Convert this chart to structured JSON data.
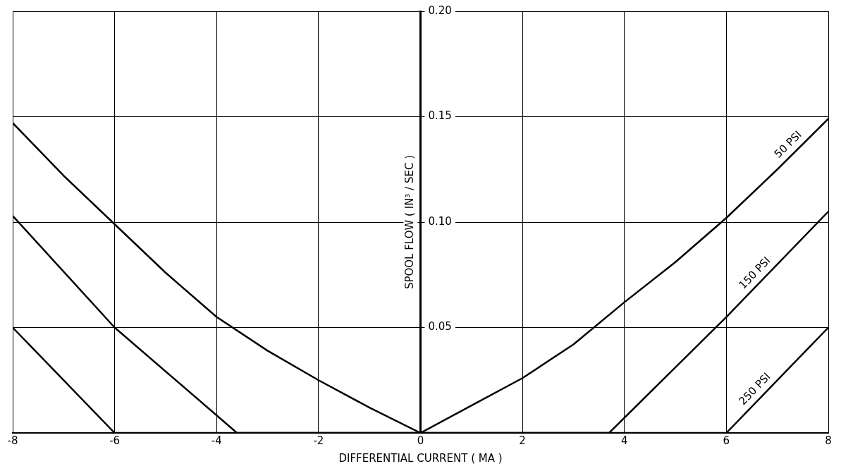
{
  "chart_data": {
    "type": "line",
    "xlabel": "DIFFERENTIAL CURRENT ( MA )",
    "ylabel": "SPOOL FLOW ( IN³ / SEC )",
    "xlim": [
      -8,
      8
    ],
    "xticks": [
      -8,
      -6,
      -4,
      -2,
      0,
      2,
      4,
      6,
      8
    ],
    "ylim": [
      0,
      0.2
    ],
    "yticks": [
      0.05,
      {
        "value": 0.1,
        "label": "0.10"
      },
      0.15,
      {
        "value": 0.2,
        "label": "0.20"
      }
    ],
    "grid": true,
    "legend": false,
    "marker": "none",
    "line_style": "solid",
    "series": [
      {
        "name": "50 PSI",
        "color": "#000000",
        "x": [
          -8,
          -7,
          -6,
          -5,
          -4,
          -3,
          -2,
          -1,
          0,
          1,
          2,
          3,
          4,
          5,
          6,
          7,
          8
        ],
        "values": [
          0.147,
          0.122,
          0.099,
          0.076,
          0.055,
          0.039,
          0.025,
          0.012,
          0,
          0.013,
          0.026,
          0.042,
          0.062,
          0.081,
          0.102,
          0.125,
          0.149
        ]
      },
      {
        "name": "150 PSI",
        "color": "#000000",
        "x": [
          -8,
          -6,
          -3.6,
          3.7,
          6,
          8
        ],
        "values": [
          0.103,
          0.05,
          0,
          0,
          0.055,
          0.105
        ]
      },
      {
        "name": "250 PSI",
        "color": "#000000",
        "x": [
          -8,
          -6,
          6,
          8
        ],
        "values": [
          0.05,
          0,
          0,
          0.05
        ]
      }
    ]
  }
}
